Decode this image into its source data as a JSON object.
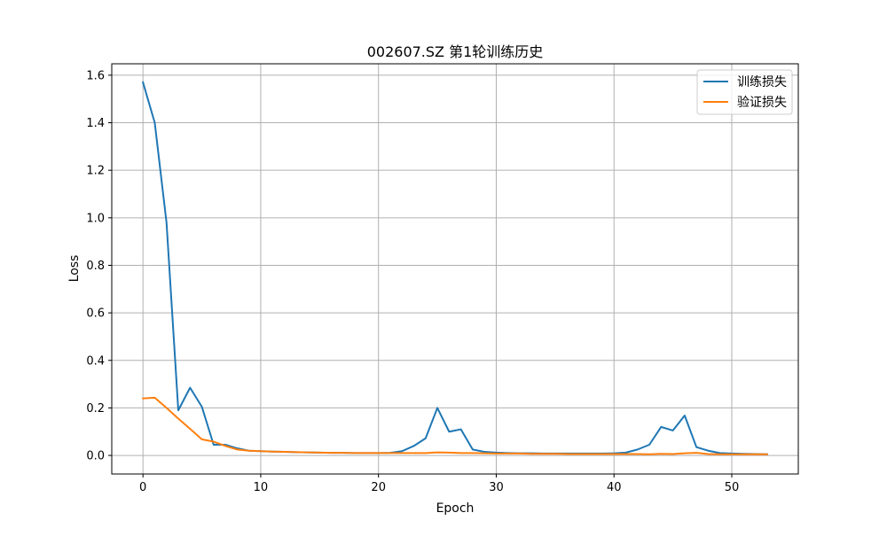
{
  "chart_data": {
    "type": "line",
    "title": "002607.SZ 第1轮训练历史",
    "xlabel": "Epoch",
    "ylabel": "Loss",
    "xlim": [
      -2.65,
      55.65
    ],
    "ylim": [
      -0.078,
      1.648
    ],
    "xticks": [
      0,
      10,
      20,
      30,
      40,
      50
    ],
    "yticks": [
      0.0,
      0.2,
      0.4,
      0.6,
      0.8,
      1.0,
      1.2,
      1.4,
      1.6
    ],
    "xtick_labels": [
      "0",
      "10",
      "20",
      "30",
      "40",
      "50"
    ],
    "ytick_labels": [
      "0.0",
      "0.2",
      "0.4",
      "0.6",
      "0.8",
      "1.0",
      "1.2",
      "1.4",
      "1.6"
    ],
    "grid": true,
    "legend_position": "top-right",
    "x": [
      0,
      1,
      2,
      3,
      4,
      5,
      6,
      7,
      8,
      9,
      10,
      11,
      12,
      13,
      14,
      15,
      16,
      17,
      18,
      19,
      20,
      21,
      22,
      23,
      24,
      25,
      26,
      27,
      28,
      29,
      30,
      31,
      32,
      33,
      34,
      35,
      36,
      37,
      38,
      39,
      40,
      41,
      42,
      43,
      44,
      45,
      46,
      47,
      48,
      49,
      50,
      51,
      52,
      53
    ],
    "series": [
      {
        "name": "训练损失",
        "color": "#1f77b4",
        "values": [
          1.57,
          1.4,
          0.98,
          0.19,
          0.285,
          0.205,
          0.045,
          0.045,
          0.03,
          0.02,
          0.018,
          0.016,
          0.015,
          0.014,
          0.013,
          0.012,
          0.011,
          0.011,
          0.01,
          0.01,
          0.01,
          0.011,
          0.018,
          0.04,
          0.072,
          0.2,
          0.1,
          0.11,
          0.025,
          0.015,
          0.012,
          0.01,
          0.009,
          0.009,
          0.008,
          0.008,
          0.008,
          0.008,
          0.008,
          0.008,
          0.009,
          0.012,
          0.025,
          0.045,
          0.12,
          0.105,
          0.168,
          0.035,
          0.02,
          0.01,
          0.008,
          0.007,
          0.006,
          0.005
        ]
      },
      {
        "name": "验证损失",
        "color": "#ff7f0e",
        "values": [
          0.24,
          0.243,
          0.2,
          0.155,
          0.112,
          0.068,
          0.058,
          0.04,
          0.025,
          0.02,
          0.018,
          0.016,
          0.015,
          0.014,
          0.013,
          0.012,
          0.011,
          0.011,
          0.01,
          0.01,
          0.01,
          0.01,
          0.01,
          0.01,
          0.01,
          0.013,
          0.012,
          0.01,
          0.01,
          0.009,
          0.008,
          0.008,
          0.008,
          0.007,
          0.007,
          0.007,
          0.006,
          0.006,
          0.006,
          0.006,
          0.006,
          0.006,
          0.006,
          0.005,
          0.007,
          0.006,
          0.009,
          0.011,
          0.006,
          0.005,
          0.005,
          0.005,
          0.005,
          0.005
        ]
      }
    ]
  }
}
